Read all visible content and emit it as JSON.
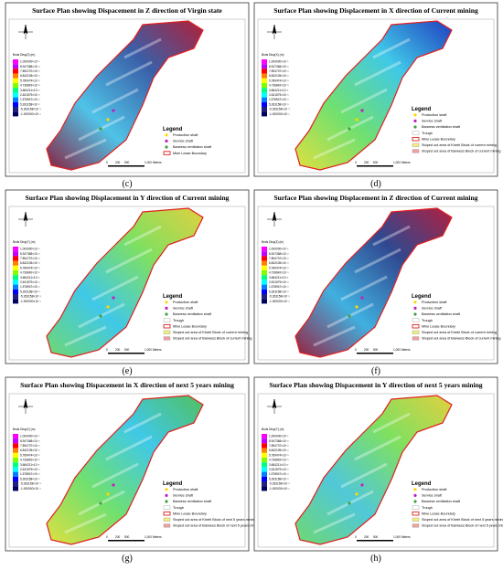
{
  "figure": {
    "scale_bar": [
      "0",
      "200",
      "500",
      "1,000 Meters"
    ],
    "colorbar_ticks": [
      "1.000000×10⁻¹",
      "8.947368×10⁻²",
      "7.894737×10⁻²",
      "6.842105×10⁻²",
      "5.789474×10⁻²",
      "4.736842×10⁻²",
      "3.684211×10⁻²",
      "2.631579×10⁻²",
      "1.578947×10⁻²",
      "5.263158×10⁻³",
      "-5.263158×10⁻³",
      "-1.000000×10⁻¹"
    ],
    "panels": [
      {
        "caption": "(c)",
        "title": "Surface Plan showing Dispacement in Z direction of Virgin state",
        "colorbar_label": "Bnds Disp(Z) (m)",
        "legend_title": "Legend",
        "palette": [
          "#b0203a",
          "#3a5fa8",
          "#4fc3e8",
          "#8a2040"
        ],
        "legend": [
          {
            "label": "Production shaft",
            "color": "#ffd700",
            "shape": "dot"
          },
          {
            "label": "Service shaft",
            "color": "#c020c0",
            "shape": "dot"
          },
          {
            "label": "Barwess ventilation shaft",
            "color": "#40a040",
            "shape": "dot"
          },
          {
            "label": "Mine Lease Boundary",
            "color": "#e02020",
            "shape": "box"
          }
        ]
      },
      {
        "caption": "(d)",
        "title": "Surface Plan showing Displacement in X direction of Current mining",
        "colorbar_label": "Bnds Disp(X) (m)",
        "legend_title": "Legend",
        "palette": [
          "#2040c0",
          "#40c8e8",
          "#70e070",
          "#e0e040"
        ],
        "legend": [
          {
            "label": "Production shaft",
            "color": "#ffd700",
            "shape": "dot"
          },
          {
            "label": "Service shaft",
            "color": "#c020c0",
            "shape": "dot"
          },
          {
            "label": "Barwess ventilation shaft",
            "color": "#40a040",
            "shape": "dot"
          },
          {
            "label": "Trough",
            "color": "#ffffff",
            "shape": "rect"
          },
          {
            "label": "Mine Lease Boundary",
            "color": "#e02020",
            "shape": "box"
          },
          {
            "label": "Stoped out area of Khetri Block of current mining",
            "color": "#f0f080",
            "shape": "rect"
          },
          {
            "label": "Stoped out area of Barwess Block of current mining",
            "color": "#f0a0a0",
            "shape": "rect"
          }
        ]
      },
      {
        "caption": "(e)",
        "title": "Surface Plan showing Displacement in Y direction of Current mining",
        "colorbar_label": "Bnds Disp(Y) (m)",
        "legend_title": "Legend",
        "palette": [
          "#e0d040",
          "#80e060",
          "#40c8e8",
          "#70d870"
        ],
        "legend": [
          {
            "label": "Production shaft",
            "color": "#ffd700",
            "shape": "dot"
          },
          {
            "label": "Service shaft",
            "color": "#c020c0",
            "shape": "dot"
          },
          {
            "label": "Barwess ventilation shaft",
            "color": "#40a040",
            "shape": "dot"
          },
          {
            "label": "Trough",
            "color": "#ffffff",
            "shape": "rect"
          },
          {
            "label": "Mine Lease Boundary",
            "color": "#e02020",
            "shape": "box"
          },
          {
            "label": "Stoped out area of Khetri Block of current mining",
            "color": "#f0f080",
            "shape": "rect"
          },
          {
            "label": "Stoped out area of Barwess Block of current mining",
            "color": "#f0a0a0",
            "shape": "rect"
          }
        ]
      },
      {
        "caption": "(f)",
        "title": "Surface Plan showing Displacement in Z direction of Current mining",
        "colorbar_label": "Bnds Disp(Z) (m)",
        "legend_title": "Legend",
        "palette": [
          "#b02040",
          "#304890",
          "#40b0e0",
          "#9a2040"
        ],
        "legend": [
          {
            "label": "Production shaft",
            "color": "#ffd700",
            "shape": "dot"
          },
          {
            "label": "Service shaft",
            "color": "#c020c0",
            "shape": "dot"
          },
          {
            "label": "Barwess ventilation shaft",
            "color": "#40a040",
            "shape": "dot"
          },
          {
            "label": "Trough",
            "color": "#ffffff",
            "shape": "rect"
          },
          {
            "label": "Mine Lease Boundary",
            "color": "#e02020",
            "shape": "box"
          },
          {
            "label": "Stoped out area of Khetri Block of current mining",
            "color": "#f0f080",
            "shape": "rect"
          },
          {
            "label": "Stoped out area of Barwess Block of current mining",
            "color": "#f0a0a0",
            "shape": "rect"
          }
        ]
      },
      {
        "caption": "(g)",
        "title": "Surface Plan showing Dispacement in X direction of next 5 years mining",
        "colorbar_label": "Bnds Disp(X) (m)",
        "legend_title": "Legend",
        "palette": [
          "#50c060",
          "#40c8e8",
          "#70e070",
          "#e0e040"
        ],
        "legend": [
          {
            "label": "Production shaft",
            "color": "#ffd700",
            "shape": "dot"
          },
          {
            "label": "Service shaft",
            "color": "#c020c0",
            "shape": "dot"
          },
          {
            "label": "Barwess ventilation shaft",
            "color": "#40a040",
            "shape": "dot"
          },
          {
            "label": "Trough",
            "color": "#ffffff",
            "shape": "rect"
          },
          {
            "label": "Mine Lease Boundary",
            "color": "#e02020",
            "shape": "box"
          },
          {
            "label": "Stoped out area of Khetri Block of next 5 years mining",
            "color": "#f0f080",
            "shape": "rect"
          },
          {
            "label": "Stoped out area of Barwess Block of next 5 years mining",
            "color": "#f0a0a0",
            "shape": "rect"
          }
        ]
      },
      {
        "caption": "(h)",
        "title": "Surface Plan showing Dispacement in Y direction of next 5 years mining",
        "colorbar_label": "Bnds Disp(Y) (m)",
        "legend_title": "Legend",
        "palette": [
          "#e0d040",
          "#80e060",
          "#50c8d8",
          "#70d870"
        ],
        "legend": [
          {
            "label": "Production shaft",
            "color": "#ffd700",
            "shape": "dot"
          },
          {
            "label": "Service shaft",
            "color": "#c020c0",
            "shape": "dot"
          },
          {
            "label": "Barwess ventilation shaft",
            "color": "#40a040",
            "shape": "dot"
          },
          {
            "label": "Trough",
            "color": "#ffffff",
            "shape": "rect"
          },
          {
            "label": "Mine Lease Boundary",
            "color": "#e02020",
            "shape": "box"
          },
          {
            "label": "Stoped out area of Khetri Block of next 5 years mining",
            "color": "#f0f080",
            "shape": "rect"
          },
          {
            "label": "Stoped out area of Barwess Block of next 5 years mining",
            "color": "#f0a0a0",
            "shape": "rect"
          }
        ]
      }
    ]
  }
}
